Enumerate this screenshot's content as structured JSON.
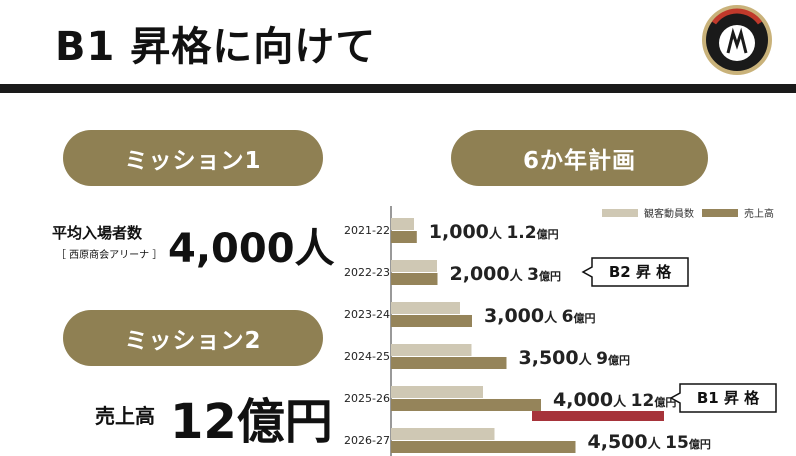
{
  "page_title": "B1 昇格に向けて",
  "mission1": {
    "pill": "ミッション1",
    "label": "平均入場者数",
    "sublabel": "［ 西原商会アリーナ ］",
    "value": "4,000人"
  },
  "mission2": {
    "pill": "ミッション2",
    "label": "売上高",
    "value": "12億円"
  },
  "plan_pill": "6か年計画",
  "colors": {
    "attendance": "#cfc8b4",
    "sales": "#95845a",
    "highlight": "#a6333a",
    "pill": "#8f8053",
    "rule": "#1a1a1a"
  },
  "chart_data": {
    "type": "bar",
    "orientation": "horizontal",
    "categories": [
      "2021-22",
      "2022-23",
      "2023-24",
      "2024-25",
      "2025-26",
      "2026-27"
    ],
    "series": [
      {
        "name": "観客動員数",
        "values": [
          1000,
          2000,
          3000,
          3500,
          4000,
          4500
        ],
        "unit": "人",
        "labels": [
          "1,000",
          "2,000",
          "3,000",
          "3,500",
          "4,000",
          "4,500"
        ]
      },
      {
        "name": "売上高",
        "values": [
          1.2,
          3,
          6,
          9,
          12,
          15
        ],
        "unit": "億円",
        "labels": [
          "1.2",
          "3",
          "6",
          "9",
          "12",
          "15"
        ]
      }
    ],
    "annotations": [
      {
        "category": "2022-23",
        "text": "B2 昇 格"
      },
      {
        "category": "2025-26",
        "text": "B1 昇 格"
      }
    ],
    "highlight_category": "2025-26",
    "legend_position": "top-right",
    "axis_labels_shown": false
  }
}
